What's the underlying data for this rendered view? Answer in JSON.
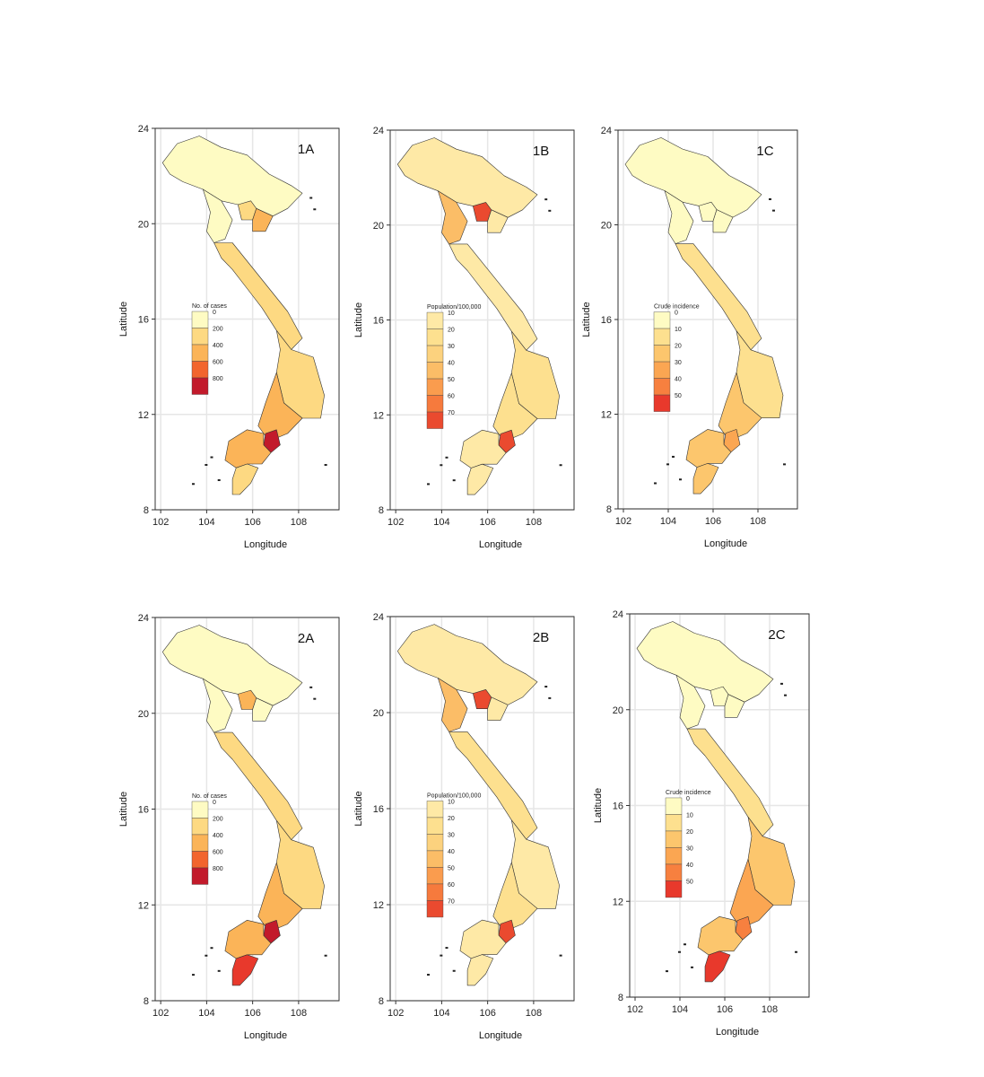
{
  "figure": {
    "panels": [
      {
        "id": "1A",
        "label": "1A",
        "legend_title": "No. of cases",
        "legend_labels": [
          "0",
          "200",
          "400",
          "600",
          "800"
        ],
        "legend_colors": [
          "#fefbc3",
          "#fdd982",
          "#fbb458",
          "#f2652d",
          "#c21a2b"
        ],
        "axis": {
          "xlabel": "Longitude",
          "ylabel": "Latitude"
        }
      },
      {
        "id": "1B",
        "label": "1B",
        "legend_title": "Population/100,000",
        "legend_labels": [
          "10",
          "20",
          "30",
          "40",
          "50",
          "60",
          "70"
        ],
        "legend_colors": [
          "#fee9a6",
          "#fde08f",
          "#fcd27e",
          "#fbbd67",
          "#fa9c4e",
          "#f67a3d",
          "#ea4a2f"
        ],
        "axis": {
          "xlabel": "Longitude",
          "ylabel": "Latitude"
        }
      },
      {
        "id": "1C",
        "label": "1C",
        "legend_title": "Crude incidence",
        "legend_labels": [
          "0",
          "10",
          "20",
          "30",
          "40",
          "50"
        ],
        "legend_colors": [
          "#fefbc3",
          "#fde08f",
          "#fcc66d",
          "#fba652",
          "#f7803f",
          "#e8392c"
        ],
        "axis": {
          "xlabel": "Longitude",
          "ylabel": "Latitude"
        }
      },
      {
        "id": "2A",
        "label": "2A",
        "legend_title": "No. of cases",
        "legend_labels": [
          "0",
          "200",
          "400",
          "600",
          "800"
        ],
        "legend_colors": [
          "#fefbc3",
          "#fdd982",
          "#fbb458",
          "#f2652d",
          "#c21a2b"
        ],
        "axis": {
          "xlabel": "Longitude",
          "ylabel": "Latitude"
        }
      },
      {
        "id": "2B",
        "label": "2B",
        "legend_title": "Population/100,000",
        "legend_labels": [
          "10",
          "20",
          "30",
          "40",
          "50",
          "60",
          "70"
        ],
        "legend_colors": [
          "#fee9a6",
          "#fde08f",
          "#fcd27e",
          "#fbbd67",
          "#fa9c4e",
          "#f67a3d",
          "#ea4a2f"
        ],
        "axis": {
          "xlabel": "Longitude",
          "ylabel": "Latitude"
        }
      },
      {
        "id": "2C",
        "label": "2C",
        "legend_title": "Crude incidence",
        "legend_labels": [
          "0",
          "10",
          "20",
          "30",
          "40",
          "50"
        ],
        "legend_colors": [
          "#fefbc3",
          "#fde08f",
          "#fcc66d",
          "#fba652",
          "#f7803f",
          "#e8392c"
        ],
        "axis": {
          "xlabel": "Longitude",
          "ylabel": "Latitude"
        }
      }
    ],
    "x_ticks": [
      "102",
      "104",
      "106",
      "108"
    ],
    "y_ticks": [
      "24",
      "20",
      "16",
      "12",
      "8"
    ],
    "region_fills": {
      "1A": {
        "north": "#fefbc3",
        "north_mid": "#fefbc3",
        "delta": "#fbb458",
        "hotspot_n": "#fdd982",
        "central": "#fdd982",
        "highlands": "#fdd982",
        "southeast": "#fbb458",
        "hcmc": "#c21a2b",
        "mekong": "#fbb458",
        "mekong_south": "#fdd982"
      },
      "1B": {
        "north": "#fee9a6",
        "north_mid": "#fbbd67",
        "delta": "#fee9a6",
        "hotspot_n": "#ea4a2f",
        "central": "#fee9a6",
        "highlands": "#fde08f",
        "southeast": "#fde08f",
        "hcmc": "#ea4a2f",
        "mekong": "#fee9a6",
        "mekong_south": "#fee9a6"
      },
      "1C": {
        "north": "#fefbc3",
        "north_mid": "#fefbc3",
        "delta": "#fefbc3",
        "hotspot_n": "#fefbc3",
        "central": "#fde08f",
        "highlands": "#fde08f",
        "southeast": "#fcc66d",
        "hcmc": "#fba652",
        "mekong": "#fcc66d",
        "mekong_south": "#fcc66d"
      },
      "2A": {
        "north": "#fefbc3",
        "north_mid": "#fefbc3",
        "delta": "#fefbc3",
        "hotspot_n": "#fbb458",
        "central": "#fdd982",
        "highlands": "#fdd982",
        "southeast": "#fbb458",
        "hcmc": "#c21a2b",
        "mekong": "#fbb458",
        "mekong_south": "#e8392c"
      },
      "2B": {
        "north": "#fee9a6",
        "north_mid": "#fbbd67",
        "delta": "#fee9a6",
        "hotspot_n": "#ea4a2f",
        "central": "#fde08f",
        "highlands": "#fee9a6",
        "southeast": "#fde08f",
        "hcmc": "#ea4a2f",
        "mekong": "#fee9a6",
        "mekong_south": "#fee9a6"
      },
      "2C": {
        "north": "#fefbc3",
        "north_mid": "#fefbc3",
        "delta": "#fefbc3",
        "hotspot_n": "#fefbc3",
        "central": "#fde08f",
        "highlands": "#fcc66d",
        "southeast": "#fba652",
        "hcmc": "#f7803f",
        "mekong": "#fcc66d",
        "mekong_south": "#e8392c"
      }
    }
  }
}
